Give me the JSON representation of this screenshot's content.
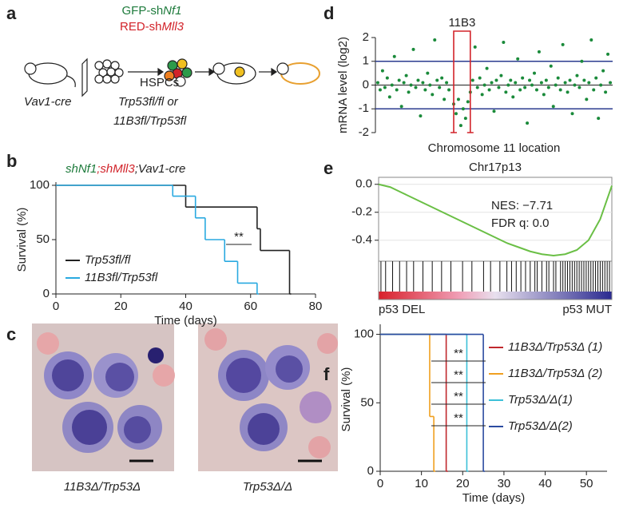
{
  "panel_labels": [
    "a",
    "b",
    "c",
    "d",
    "e",
    "f"
  ],
  "schematic": {
    "gfp": "GFP-sh",
    "gfp_gene": "Nf1",
    "red": "RED-sh",
    "red_gene": "Mll3",
    "strain": "Vav1-cre",
    "cells": "HSPCs",
    "genotype_1": "Trp53fl/fl or",
    "genotype_2": "11B3fl/Trp53fl"
  },
  "micrographs": [
    {
      "caption": "11B3Δ/Trp53Δ"
    },
    {
      "caption": "Trp53Δ/Δ"
    }
  ],
  "chart_data": [
    {
      "type": "survival",
      "title": [
        {
          "text": "shNf1",
          "color": "#1e7b3c"
        },
        {
          "text": ";shMll3",
          "color": "#d2232a"
        },
        {
          "text": ";Vav1-cre",
          "color": "#222222"
        }
      ],
      "xlabel": "Time (days)",
      "ylabel": "Survival (%)",
      "xlim": [
        0,
        80
      ],
      "ylim": [
        0,
        100
      ],
      "xticks": [
        0,
        20,
        40,
        60,
        80
      ],
      "yticks": [
        0,
        50,
        100
      ],
      "series": [
        {
          "name": "Trp53fl/fl",
          "color": "#222222",
          "x": [
            0,
            40,
            62,
            63,
            72
          ],
          "values": [
            100,
            80,
            60,
            40,
            0
          ]
        },
        {
          "name": "11B3fl/Trp53fl",
          "color": "#29a9e0",
          "x": [
            0,
            36,
            43,
            46,
            52,
            56,
            62
          ],
          "values": [
            100,
            90,
            70,
            50,
            30,
            10,
            0
          ]
        }
      ],
      "annotations": [
        "**"
      ]
    },
    {
      "type": "scatter",
      "region_label": "11B3",
      "region": [
        33,
        40
      ],
      "xlabel": "Chromosome 11 location",
      "ylabel": "mRNA level (log2)",
      "xlim": [
        0,
        100
      ],
      "ylim": [
        -2,
        2
      ],
      "yticks": [
        -2,
        -1,
        0,
        1,
        2
      ],
      "reference_lines": [
        1,
        -1
      ],
      "reference_color": "#2b3b8f",
      "color": "#1a8a3a",
      "x": [
        1,
        2,
        3,
        4,
        5,
        6,
        7,
        8,
        9,
        10,
        11,
        12,
        13,
        14,
        15,
        16,
        17,
        18,
        19,
        20,
        21,
        22,
        23,
        24,
        25,
        26,
        27,
        28,
        29,
        30,
        31,
        33,
        34,
        35,
        36,
        37,
        38,
        39,
        40,
        41,
        42,
        43,
        44,
        45,
        46,
        47,
        48,
        49,
        50,
        51,
        52,
        53,
        54,
        55,
        56,
        57,
        58,
        59,
        60,
        61,
        62,
        63,
        64,
        65,
        66,
        67,
        68,
        69,
        70,
        71,
        72,
        73,
        74,
        75,
        76,
        77,
        78,
        79,
        80,
        81,
        82,
        83,
        84,
        85,
        86,
        87,
        88,
        89,
        90,
        91,
        92,
        93,
        94,
        95,
        96,
        97,
        98,
        99
      ],
      "values": [
        0.1,
        -0.2,
        0.6,
        -0.1,
        0.3,
        -0.5,
        0.0,
        1.2,
        -0.2,
        0.2,
        -0.9,
        0.1,
        0.4,
        -0.3,
        0.0,
        1.5,
        -0.1,
        0.2,
        -1.3,
        0.1,
        -0.2,
        0.5,
        0.0,
        -0.4,
        1.9,
        0.2,
        -0.1,
        0.3,
        -0.6,
        0.1,
        -0.2,
        -0.8,
        -1.2,
        -0.6,
        -1.7,
        -1.0,
        -1.4,
        -0.7,
        -0.3,
        0.2,
        1.6,
        -0.1,
        0.3,
        -0.4,
        0.0,
        0.7,
        -0.2,
        0.1,
        -1.1,
        0.2,
        -0.1,
        0.4,
        1.8,
        -0.3,
        0.0,
        0.2,
        -0.5,
        0.1,
        1.1,
        -0.2,
        0.3,
        -0.1,
        -1.6,
        0.2,
        0.0,
        0.5,
        -0.2,
        1.4,
        0.1,
        -0.4,
        0.2,
        -0.1,
        0.8,
        -0.9,
        0.0,
        0.3,
        -0.2,
        1.7,
        0.1,
        -0.3,
        0.2,
        -1.2,
        0.0,
        0.4,
        -0.1,
        1.0,
        0.2,
        -0.6,
        0.1,
        1.9,
        -0.2,
        0.3,
        -1.4,
        0.0,
        0.6,
        -0.3,
        1.3,
        0.1
      ]
    },
    {
      "type": "enrichment",
      "title": "Chr17p13",
      "xlim": [
        0,
        100
      ],
      "ylim": [
        -0.55,
        0.05
      ],
      "yticks": [
        {
          "value": 0,
          "label": "0.0"
        },
        -0.2,
        -0.4
      ],
      "color": "#6abf45",
      "x": [
        0,
        5,
        10,
        15,
        20,
        25,
        30,
        35,
        40,
        45,
        50,
        55,
        60,
        65,
        70,
        75,
        80,
        85,
        90,
        95,
        100
      ],
      "values": [
        0,
        -0.02,
        -0.06,
        -0.1,
        -0.14,
        -0.18,
        -0.22,
        -0.26,
        -0.3,
        -0.34,
        -0.38,
        -0.42,
        -0.45,
        -0.48,
        -0.5,
        -0.51,
        -0.5,
        -0.47,
        -0.4,
        -0.25,
        -0.01
      ],
      "hits": [
        1,
        3,
        6,
        9,
        12,
        15,
        19,
        23,
        27,
        31,
        36,
        40,
        45,
        48,
        52,
        55,
        57,
        59,
        61,
        63,
        65,
        67,
        68,
        70,
        72,
        73,
        75,
        76,
        78,
        79,
        80,
        81,
        82,
        83,
        84,
        85,
        86,
        87,
        88,
        89,
        90,
        91,
        92,
        93,
        94,
        95,
        96,
        97,
        98,
        99
      ],
      "annotations": [
        "NES: −7.71",
        "FDR q: 0.0"
      ],
      "end_labels": [
        "p53 DEL",
        "p53 MUT"
      ]
    },
    {
      "type": "survival",
      "xlabel": "Time (days)",
      "ylabel": "Survival (%)",
      "xlim": [
        0,
        55
      ],
      "ylim": [
        0,
        105
      ],
      "xticks": [
        0,
        10,
        20,
        30,
        40,
        50
      ],
      "yticks": [
        0,
        50,
        100
      ],
      "series": [
        {
          "name": "11B3Δ/Trp53Δ (1)",
          "color": "#c0282d",
          "x": [
            0,
            16
          ],
          "values": [
            100,
            0
          ]
        },
        {
          "name": "11B3Δ/Trp53Δ (2)",
          "color": "#f0a020",
          "x": [
            0,
            12,
            13
          ],
          "values": [
            100,
            40,
            0
          ]
        },
        {
          "name": "Trp53Δ/Δ(1)",
          "color": "#3cc0d8",
          "x": [
            0,
            21
          ],
          "values": [
            100,
            0
          ]
        },
        {
          "name": "Trp53Δ/Δ(2)",
          "color": "#2b4ba0",
          "x": [
            0,
            25
          ],
          "values": [
            100,
            0
          ]
        }
      ],
      "annotations": [
        "**",
        "**",
        "**",
        "**"
      ]
    }
  ]
}
